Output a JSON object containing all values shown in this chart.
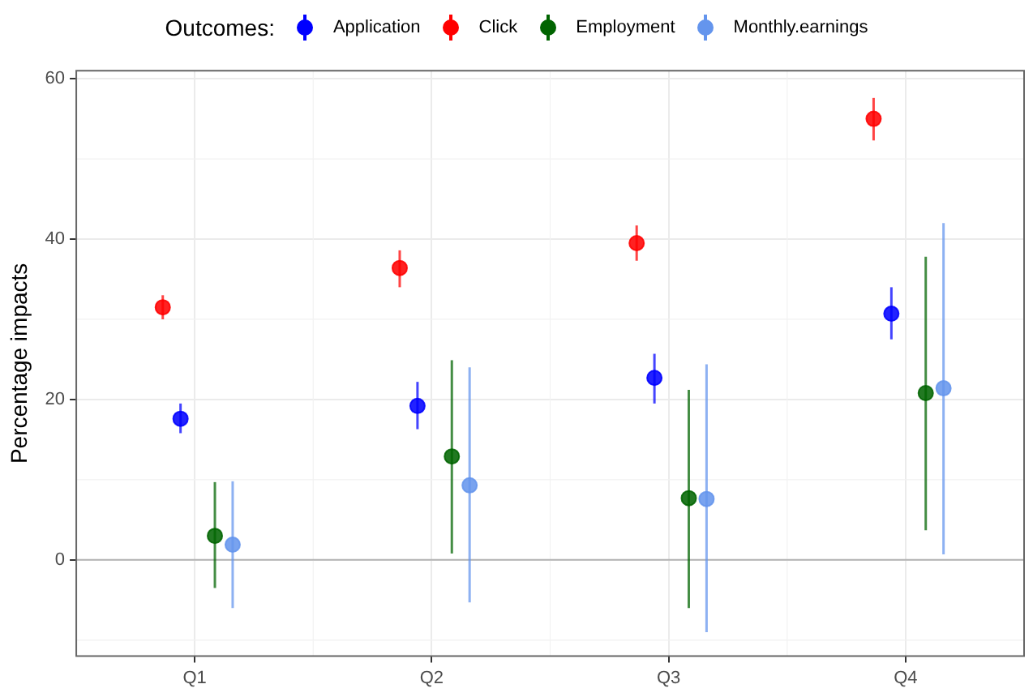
{
  "chart_data": {
    "type": "scatter",
    "ylabel": "Percentage impacts",
    "legend_title": "Outcomes:",
    "legend": "top",
    "grid": true,
    "marker": "circle",
    "categories": [
      "Q1",
      "Q2",
      "Q3",
      "Q4"
    ],
    "ylim": [
      -12,
      61
    ],
    "yticks": [
      0,
      20,
      40,
      60
    ],
    "ref_lines": [
      {
        "axis": "y",
        "value": 0,
        "color": "#b3b3b3"
      }
    ],
    "series": [
      {
        "name": "Application",
        "color": "#0000ff",
        "values": [
          17.6,
          19.2,
          22.7,
          30.7
        ],
        "errors": [
          [
            15.8,
            19.5
          ],
          [
            16.3,
            22.2
          ],
          [
            19.5,
            25.7
          ],
          [
            27.5,
            34
          ]
        ]
      },
      {
        "name": "Click",
        "color": "#ff0000",
        "values": [
          31.5,
          36.4,
          39.5,
          55
        ],
        "errors": [
          [
            30,
            33
          ],
          [
            34,
            38.6
          ],
          [
            37.3,
            41.7
          ],
          [
            52.3,
            57.6
          ]
        ]
      },
      {
        "name": "Employment",
        "color": "#006400",
        "values": [
          3,
          12.9,
          7.7,
          20.8
        ],
        "errors": [
          [
            -3.5,
            9.7
          ],
          [
            0.8,
            24.9
          ],
          [
            -6,
            21.2
          ],
          [
            3.7,
            37.8
          ]
        ]
      },
      {
        "name": "Monthly.earnings",
        "color": "#6495ed",
        "values": [
          1.9,
          9.3,
          7.6,
          21.4
        ],
        "errors": [
          [
            -6,
            9.8
          ],
          [
            -5.3,
            24
          ],
          [
            -9,
            24.4
          ],
          [
            0.7,
            42
          ]
        ]
      }
    ]
  }
}
